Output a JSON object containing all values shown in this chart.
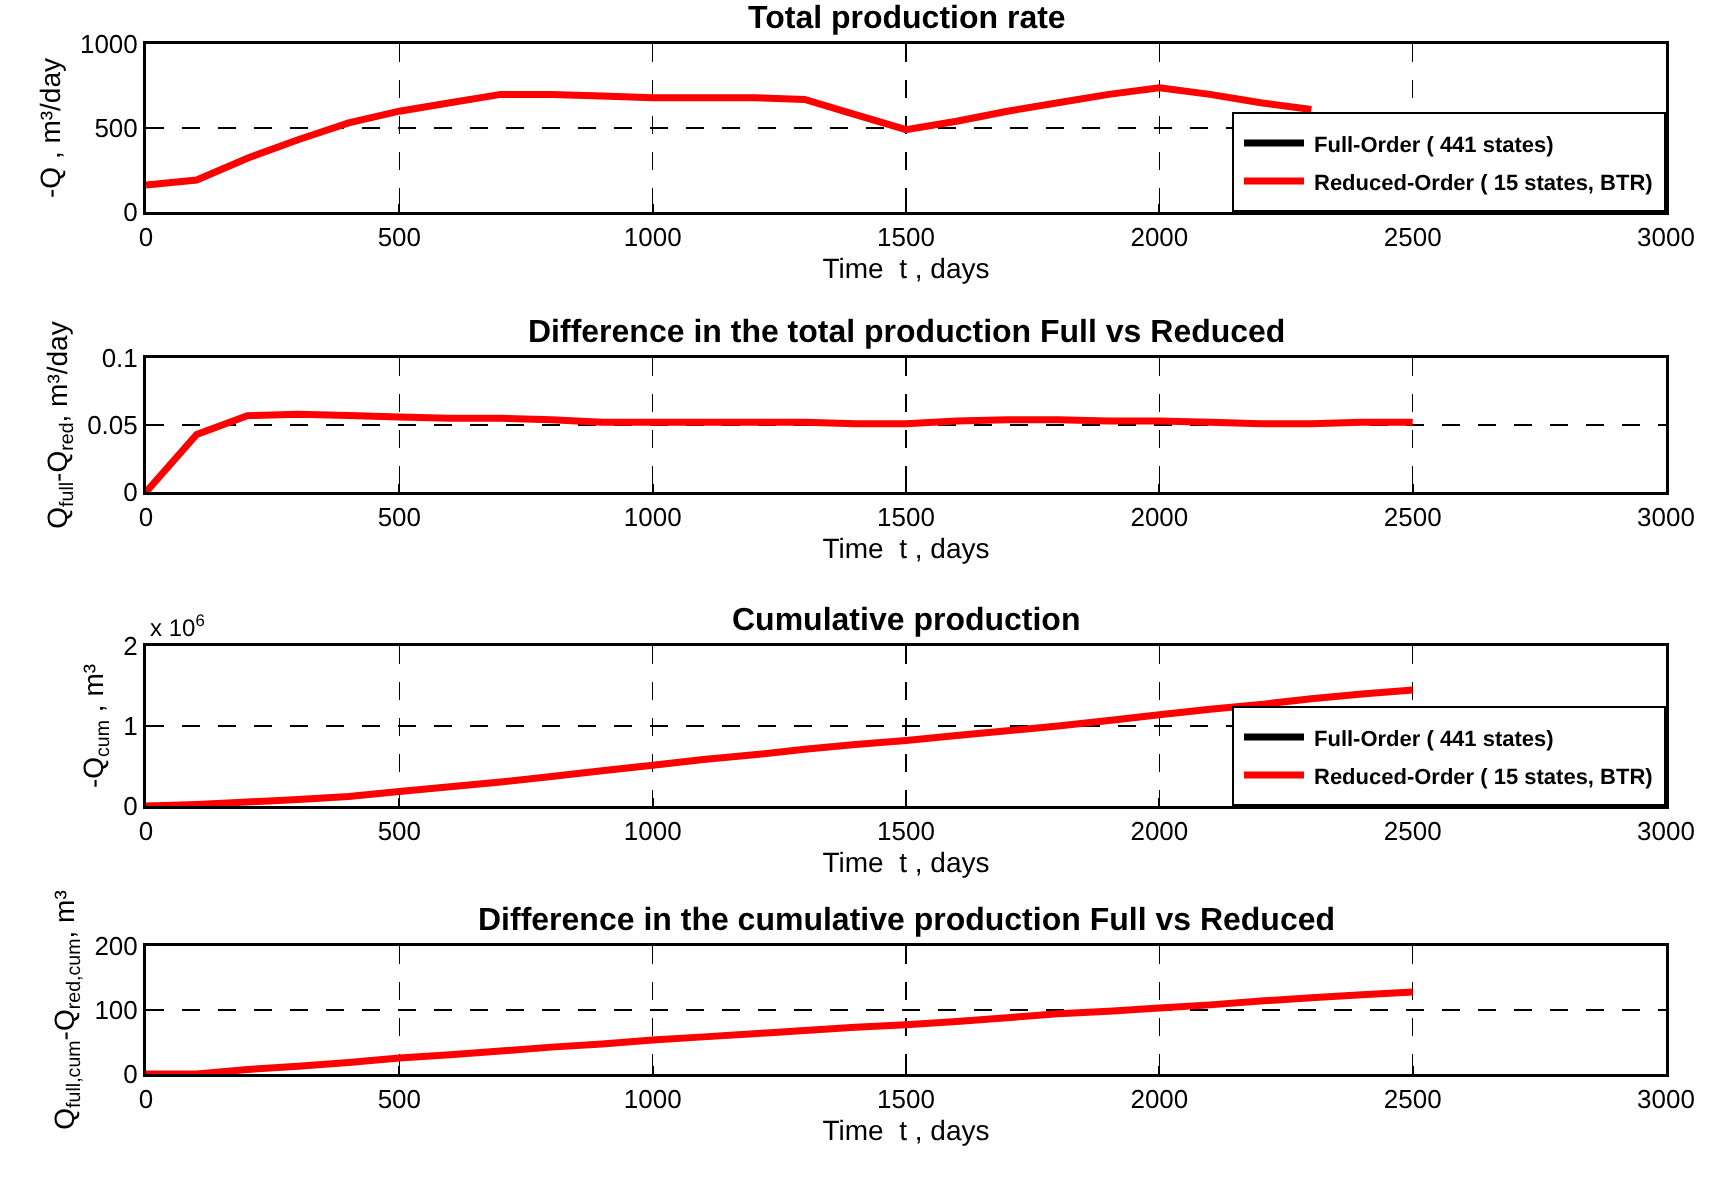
{
  "chart_data": [
    {
      "type": "line",
      "title": "Total production rate",
      "xlabel": "Time  t , days",
      "ylabel": "-Q , m³/day",
      "x": [
        0,
        100,
        200,
        300,
        400,
        500,
        600,
        700,
        800,
        900,
        1000,
        1100,
        1200,
        1300,
        1400,
        1500,
        1600,
        1700,
        1800,
        1900,
        2000,
        2100,
        2200,
        2300
      ],
      "xlim": [
        0,
        3000
      ],
      "xticks": [
        0,
        500,
        1000,
        1500,
        2000,
        2500,
        3000
      ],
      "ylim": [
        0,
        1000
      ],
      "yticks": [
        0,
        500,
        1000
      ],
      "grid": true,
      "legend": "bottom right",
      "series": [
        {
          "name": "Full-Order ( 441 states)",
          "color": "#000000",
          "values": [
            null,
            null,
            null,
            null,
            null,
            null,
            null,
            null,
            null,
            null,
            null,
            null,
            null,
            null,
            null,
            null,
            null,
            null,
            null,
            null,
            null,
            null,
            null,
            null
          ]
        },
        {
          "name": "Reduced-Order ( 15 states, BTR)",
          "color": "#ff0000",
          "values": [
            160,
            190,
            320,
            430,
            530,
            600,
            650,
            700,
            700,
            690,
            680,
            680,
            680,
            670,
            580,
            490,
            540,
            600,
            650,
            700,
            740,
            700,
            650,
            610
          ]
        }
      ]
    },
    {
      "type": "line",
      "title": "Difference in the total production Full vs Reduced",
      "xlabel": "Time  t , days",
      "ylabel": "Q$_{full}$-Q$_{red}$, m³/day",
      "x": [
        0,
        100,
        200,
        300,
        400,
        500,
        600,
        700,
        800,
        900,
        1000,
        1100,
        1200,
        1300,
        1400,
        1500,
        1600,
        1700,
        1800,
        1900,
        2000,
        2100,
        2200,
        2300,
        2400,
        2500
      ],
      "xlim": [
        0,
        3000
      ],
      "xticks": [
        0,
        500,
        1000,
        1500,
        2000,
        2500,
        3000
      ],
      "ylim": [
        0,
        0.1
      ],
      "yticks": [
        0,
        0.05,
        0.1
      ],
      "grid": true,
      "series": [
        {
          "color": "#ff0000",
          "values": [
            0,
            0.043,
            0.057,
            0.058,
            0.057,
            0.056,
            0.055,
            0.055,
            0.054,
            0.052,
            0.052,
            0.052,
            0.052,
            0.052,
            0.051,
            0.051,
            0.053,
            0.054,
            0.054,
            0.053,
            0.053,
            0.052,
            0.051,
            0.051,
            0.052,
            0.052
          ]
        }
      ]
    },
    {
      "type": "line",
      "title": "Cumulative production",
      "xlabel": "Time  t , days",
      "ylabel": "-Q$_{cum}$ , m³",
      "annotations": [
        "x 10$^{6}$"
      ],
      "x": [
        0,
        100,
        200,
        300,
        400,
        500,
        600,
        700,
        800,
        900,
        1000,
        1100,
        1200,
        1300,
        1400,
        1500,
        1600,
        1700,
        1800,
        1900,
        2000,
        2100,
        2200,
        2300,
        2400,
        2500
      ],
      "xlim": [
        0,
        3000
      ],
      "xticks": [
        0,
        500,
        1000,
        1500,
        2000,
        2500,
        3000
      ],
      "ylim": [
        0,
        2
      ],
      "yticks": [
        0,
        1,
        2
      ],
      "grid": true,
      "legend": "bottom right",
      "series": [
        {
          "name": "Full-Order ( 441 states)",
          "color": "#000000",
          "values": [
            null,
            null,
            null,
            null,
            null,
            null,
            null,
            null,
            null,
            null,
            null,
            null,
            null,
            null,
            null,
            null,
            null,
            null,
            null,
            null,
            null,
            null,
            null,
            null,
            null,
            null
          ]
        },
        {
          "name": "Reduced-Order ( 15 states, BTR)",
          "color": "#ff0000",
          "values": [
            0,
            0.02,
            0.05,
            0.08,
            0.12,
            0.18,
            0.24,
            0.3,
            0.37,
            0.44,
            0.51,
            0.58,
            0.64,
            0.71,
            0.77,
            0.82,
            0.88,
            0.94,
            1.0,
            1.07,
            1.14,
            1.21,
            1.27,
            1.34,
            1.4,
            1.45
          ]
        }
      ]
    },
    {
      "type": "line",
      "title": "Difference in the cumulative production Full vs Reduced",
      "xlabel": "Time  t , days",
      "ylabel": "Q$_{full,cum}$-Q$_{red,cum}$, m³",
      "x": [
        0,
        100,
        200,
        300,
        400,
        500,
        600,
        700,
        800,
        900,
        1000,
        1100,
        1200,
        1300,
        1400,
        1500,
        1600,
        1700,
        1800,
        1900,
        2000,
        2100,
        2200,
        2300,
        2400,
        2500
      ],
      "xlim": [
        0,
        3000
      ],
      "xticks": [
        0,
        500,
        1000,
        1500,
        2000,
        2500,
        3000
      ],
      "ylim": [
        0,
        200
      ],
      "yticks": [
        0,
        100,
        200
      ],
      "grid": true,
      "series": [
        {
          "color": "#ff0000",
          "values": [
            0,
            0,
            7,
            12,
            18,
            25,
            30,
            36,
            42,
            47,
            53,
            58,
            63,
            68,
            73,
            77,
            82,
            88,
            94,
            98,
            103,
            108,
            114,
            119,
            124,
            128
          ]
        }
      ]
    }
  ]
}
